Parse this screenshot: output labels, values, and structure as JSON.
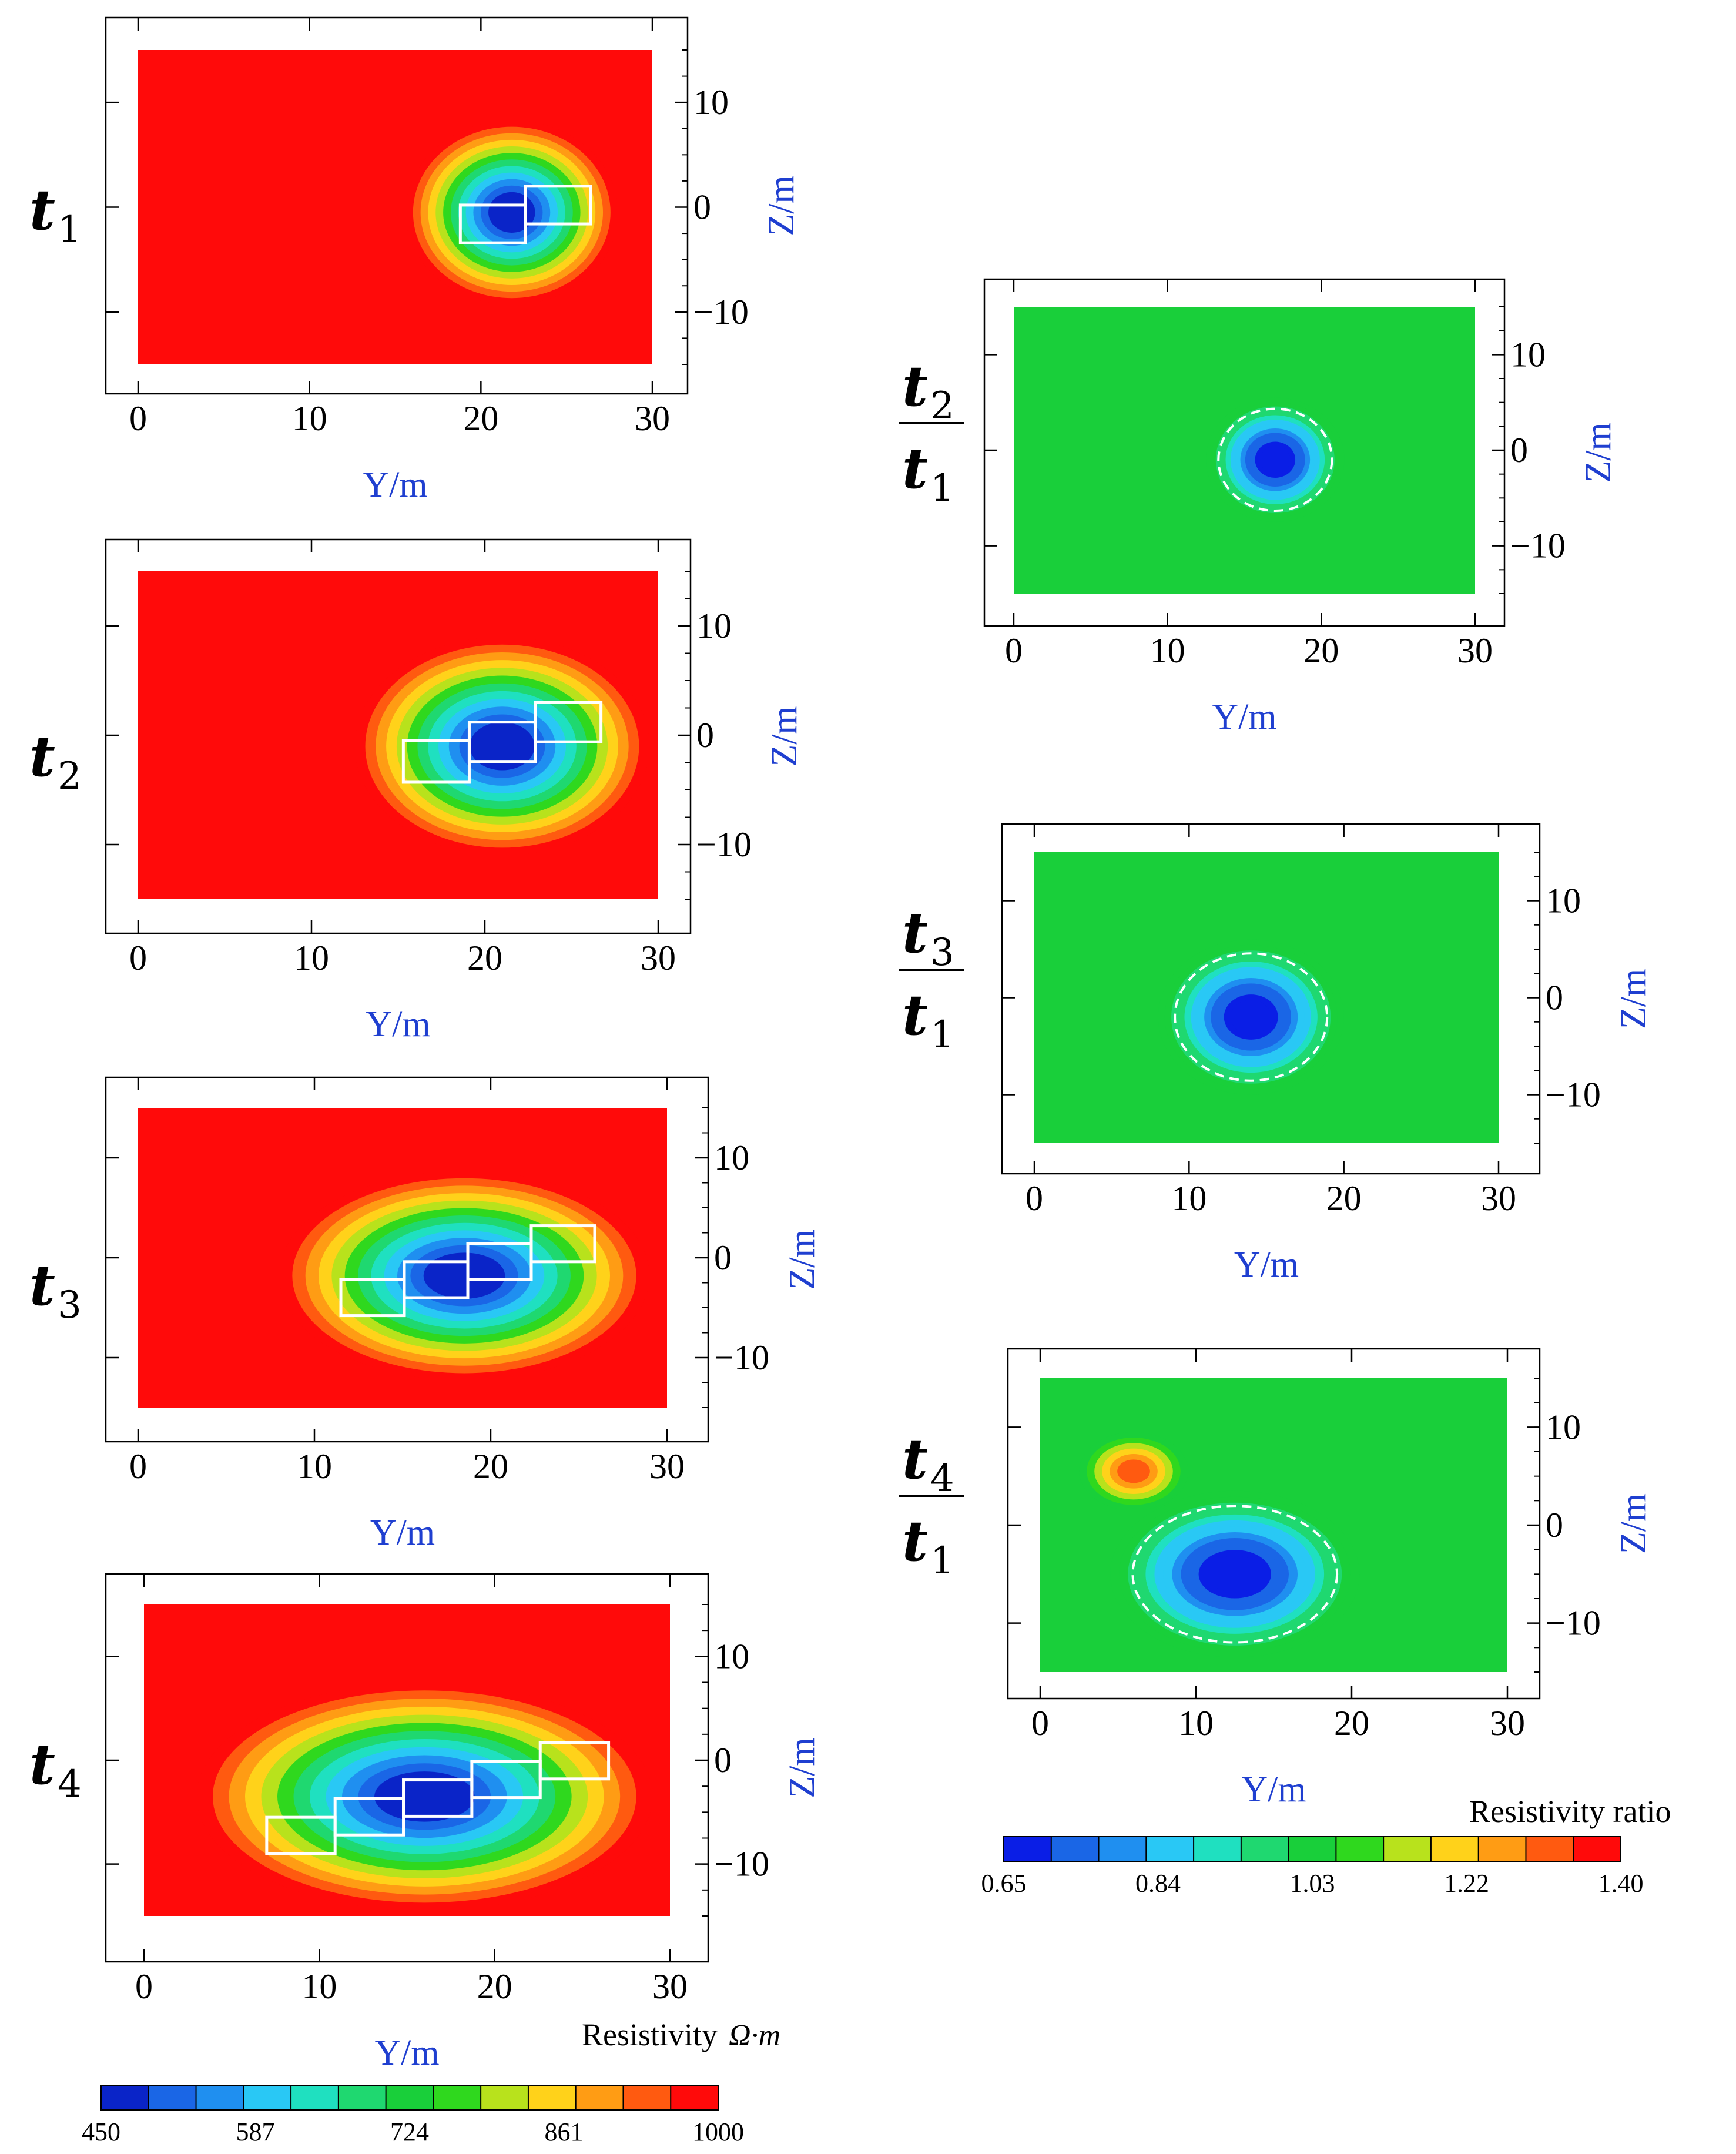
{
  "chart_data": [
    {
      "type": "heatmap",
      "id": "p1",
      "row_label": {
        "main": "t",
        "sub": "1"
      },
      "xlabel": "Y/m",
      "ylabel": "Z/m",
      "xlim": [
        0,
        30
      ],
      "ylim": [
        -15,
        15
      ],
      "xticks": [
        0,
        10,
        20,
        30
      ],
      "yticks": [
        10,
        0,
        -10
      ],
      "xtick_labels": [
        "0",
        "10",
        "20",
        "30"
      ],
      "ytick_labels": [
        "10",
        "0",
        "−10"
      ],
      "background_value": 1000,
      "anomaly": {
        "center": [
          21.8,
          -0.5
        ],
        "rx": 6.2,
        "ry": 8.8,
        "min_value": 450
      },
      "boxes": [
        [
          18.8,
          -3.4,
          22.6,
          0.2
        ],
        [
          22.6,
          -1.6,
          26.4,
          2.0
        ]
      ]
    },
    {
      "type": "heatmap",
      "id": "p2",
      "row_label": {
        "main": "t",
        "sub": "2"
      },
      "xlabel": "Y/m",
      "ylabel": "Z/m",
      "xlim": [
        0,
        30
      ],
      "ylim": [
        -15,
        15
      ],
      "xticks": [
        0,
        10,
        20,
        30
      ],
      "yticks": [
        10,
        0,
        -10
      ],
      "xtick_labels": [
        "0",
        "10",
        "20",
        "30"
      ],
      "ytick_labels": [
        "10",
        "0",
        "−10"
      ],
      "background_value": 1000,
      "anomaly": {
        "center": [
          21.0,
          -1.0
        ],
        "rx": 8.5,
        "ry": 10.0,
        "min_value": 450
      },
      "boxes": [
        [
          15.3,
          -4.3,
          19.1,
          -0.5
        ],
        [
          19.1,
          -2.4,
          22.9,
          1.2
        ],
        [
          22.9,
          -0.6,
          26.7,
          3.0
        ]
      ]
    },
    {
      "type": "heatmap",
      "id": "p3",
      "row_label": {
        "main": "t",
        "sub": "3"
      },
      "xlabel": "Y/m",
      "ylabel": "Z/m",
      "xlim": [
        0,
        30
      ],
      "ylim": [
        -15,
        15
      ],
      "xticks": [
        0,
        10,
        20,
        30
      ],
      "yticks": [
        10,
        0,
        -10
      ],
      "xtick_labels": [
        "0",
        "10",
        "20",
        "30"
      ],
      "ytick_labels": [
        "10",
        "0",
        "−10"
      ],
      "background_value": 1000,
      "anomaly": {
        "center": [
          18.5,
          -1.8
        ],
        "rx": 10.5,
        "ry": 10.5,
        "min_value": 450
      },
      "boxes": [
        [
          11.5,
          -5.8,
          15.1,
          -2.2
        ],
        [
          15.1,
          -4.0,
          18.7,
          -0.4
        ],
        [
          18.7,
          -2.2,
          22.3,
          1.4
        ],
        [
          22.3,
          -0.4,
          25.9,
          3.2
        ]
      ]
    },
    {
      "type": "heatmap",
      "id": "p4",
      "row_label": {
        "main": "t",
        "sub": "4"
      },
      "xlabel": "Y/m",
      "ylabel": "Z/m",
      "xlim": [
        0,
        30
      ],
      "ylim": [
        -15,
        15
      ],
      "xticks": [
        0,
        10,
        20,
        30
      ],
      "yticks": [
        10,
        0,
        -10
      ],
      "xtick_labels": [
        "0",
        "10",
        "20",
        "30"
      ],
      "ytick_labels": [
        "10",
        "0",
        "−10"
      ],
      "background_value": 1000,
      "anomaly": {
        "center": [
          16.0,
          -3.5
        ],
        "rx": 13.0,
        "ry": 11.0,
        "min_value": 450
      },
      "boxes": [
        [
          7.0,
          -9.0,
          10.9,
          -5.5
        ],
        [
          10.9,
          -7.2,
          14.8,
          -3.7
        ],
        [
          14.8,
          -5.4,
          18.7,
          -1.9
        ],
        [
          18.7,
          -3.6,
          22.6,
          -0.1
        ],
        [
          22.6,
          -1.8,
          26.5,
          1.7
        ]
      ]
    },
    {
      "type": "heatmap",
      "id": "r2",
      "row_label": {
        "numerator": "t",
        "numerator_sub": "2",
        "denominator": "t",
        "denominator_sub": "1"
      },
      "xlabel": "Y/m",
      "ylabel": "Z/m",
      "xlim": [
        0,
        30
      ],
      "ylim": [
        -15,
        15
      ],
      "xticks": [
        0,
        10,
        20,
        30
      ],
      "yticks": [
        10,
        0,
        -10
      ],
      "xtick_labels": [
        "0",
        "10",
        "20",
        "30"
      ],
      "ytick_labels": [
        "10",
        "0",
        "−10"
      ],
      "background_value": 1.05,
      "anomaly": {
        "center": [
          17.0,
          -1.0
        ],
        "rx": 4.5,
        "ry": 6.5,
        "min_value": 0.65
      }
    },
    {
      "type": "heatmap",
      "id": "r3",
      "row_label": {
        "numerator": "t",
        "numerator_sub": "3",
        "denominator": "t",
        "denominator_sub": "1"
      },
      "xlabel": "Y/m",
      "ylabel": "Z/m",
      "xlim": [
        0,
        30
      ],
      "ylim": [
        -15,
        15
      ],
      "xticks": [
        0,
        10,
        20,
        30
      ],
      "yticks": [
        10,
        0,
        -10
      ],
      "xtick_labels": [
        "0",
        "10",
        "20",
        "30"
      ],
      "ytick_labels": [
        "10",
        "0",
        "−10"
      ],
      "background_value": 1.05,
      "anomaly": {
        "center": [
          14.0,
          -2.0
        ],
        "rx": 6.0,
        "ry": 8.0,
        "min_value": 0.65
      }
    },
    {
      "type": "heatmap",
      "id": "r4",
      "row_label": {
        "numerator": "t",
        "numerator_sub": "4",
        "denominator": "t",
        "denominator_sub": "1"
      },
      "xlabel": "Y/m",
      "ylabel": "Z/m",
      "xlim": [
        0,
        30
      ],
      "ylim": [
        -15,
        15
      ],
      "xticks": [
        0,
        10,
        20,
        30
      ],
      "yticks": [
        10,
        0,
        -10
      ],
      "xtick_labels": [
        "0",
        "10",
        "20",
        "30"
      ],
      "ytick_labels": [
        "10",
        "0",
        "−10"
      ],
      "background_value": 1.05,
      "anomaly": {
        "center": [
          12.5,
          -5.0
        ],
        "rx": 8.0,
        "ry": 8.5,
        "min_value": 0.65
      },
      "high_spot": {
        "center": [
          6.0,
          5.5
        ],
        "rx": 3.5,
        "ry": 4.0,
        "max_value": 1.3
      }
    }
  ],
  "colorbars": {
    "resistivity": {
      "title": "Resistivity",
      "unit": "Ω·m",
      "ticks": [
        "450",
        "587",
        "724",
        "861",
        "1000"
      ],
      "range": [
        450,
        1000
      ],
      "colors": [
        "#0a24c8",
        "#1a66e6",
        "#1f8ff0",
        "#29c8f5",
        "#1fe0c0",
        "#1fd870",
        "#19cf3a",
        "#2fd81e",
        "#b8e21c",
        "#ffd21a",
        "#ff9c14",
        "#ff5a10",
        "#ff0a0a"
      ]
    },
    "ratio": {
      "title": "Resistivity ratio",
      "ticks": [
        "0.65",
        "0.84",
        "1.03",
        "1.22",
        "1.40"
      ],
      "range": [
        0.65,
        1.4
      ],
      "colors": [
        "#0a1ee6",
        "#1a66e6",
        "#1f8ff0",
        "#29c8f5",
        "#1fe0c0",
        "#1fd870",
        "#19cf3a",
        "#2fd81e",
        "#b8e21c",
        "#ffd21a",
        "#ff9c14",
        "#ff5a10",
        "#ff0a0a"
      ]
    }
  }
}
